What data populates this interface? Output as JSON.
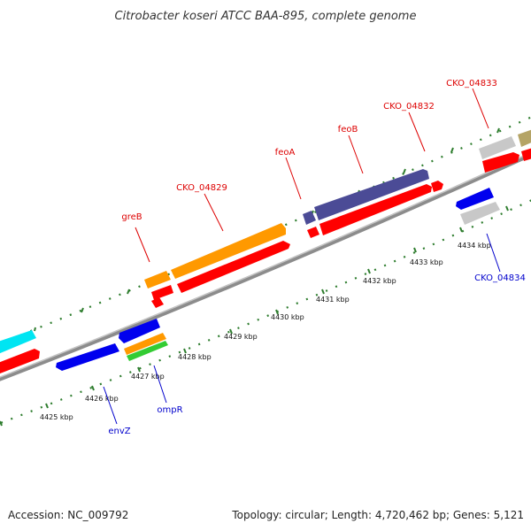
{
  "title": "Citrobacter koseri ATCC BAA-895, complete genome",
  "footer": {
    "accession": "Accession: NC_009792",
    "summary": "Topology: circular; Length: 4,720,462 bp; Genes: 5,121"
  },
  "colors": {
    "background": "#ffffff",
    "backbone": "#8c8c8c",
    "dot_track": "#2e7d2e",
    "label_forward": "#dd0000",
    "label_reverse": "#0000cc",
    "cds": "#ff0000",
    "gene_orange": "#ff9900",
    "gene_purple": "#4b4b96",
    "gene_blue": "#0000ee",
    "gene_cyan": "#00e5f2",
    "gene_gray": "#c8c8c8",
    "gene_green": "#33cc33",
    "gene_olive": "#b5a466"
  },
  "tick_labels": [
    "4425 kbp",
    "4426 kbp",
    "4427 kbp",
    "4428 kbp",
    "4429 kbp",
    "4430 kbp",
    "4431 kbp",
    "4432 kbp",
    "4433 kbp",
    "4434 kbp"
  ],
  "gene_labels": [
    {
      "text": "greB",
      "strand": "forward"
    },
    {
      "text": "CKO_04829",
      "strand": "forward"
    },
    {
      "text": "feoA",
      "strand": "forward"
    },
    {
      "text": "feoB",
      "strand": "forward"
    },
    {
      "text": "CKO_04832",
      "strand": "forward"
    },
    {
      "text": "CKO_04833",
      "strand": "forward"
    },
    {
      "text": "CKO_04834",
      "strand": "reverse"
    },
    {
      "text": "envZ",
      "strand": "reverse"
    },
    {
      "text": "ompR",
      "strand": "reverse"
    }
  ]
}
